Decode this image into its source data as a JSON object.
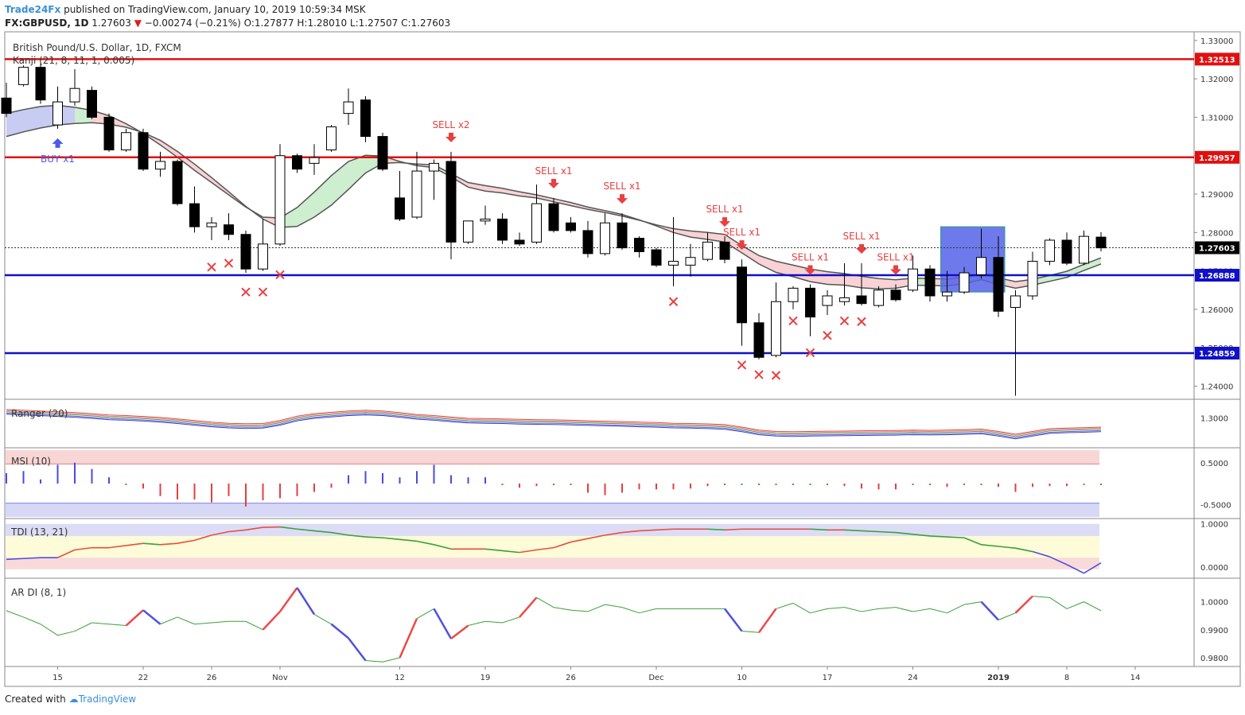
{
  "header": {
    "publisher": "Trade24Fx",
    "published_text": "published on TradingView.com, January 10, 2019 10:59:34 MSK",
    "symbol": "FX:GBPUSD, 1D",
    "last": "1.27603",
    "change": "−0.00274 (−0.21%)",
    "o_label": "O:",
    "o": "1.27877",
    "h_label": "H:",
    "h": "1.28010",
    "l_label": "L:",
    "l": "1.27507",
    "c_label": "C:",
    "c": "1.27603"
  },
  "footer": {
    "created_with": "Created with",
    "brand": "TradingView"
  },
  "colors": {
    "up_candle": "#ffffff",
    "down_candle": "#000000",
    "resistance": "#e01010",
    "support": "#1010c8",
    "sell": "#e84040",
    "buy": "#4a5ce8",
    "highlight": "#5561e8"
  },
  "chart_data": {
    "type": "candlestick",
    "title": "British Pound/U.S. Dollar, 1D, FXCM",
    "indicator_label": "Kanji (21, 8, 11, 1, 0.005)",
    "ylim": [
      1.237,
      1.331
    ],
    "y_ticks": [
      "1.33000",
      "1.32000",
      "1.31000",
      "1.30000",
      "1.29000",
      "1.28000",
      "1.27000",
      "1.26000",
      "1.25000",
      "1.24000"
    ],
    "x_ticks": [
      {
        "label": "15",
        "i": 3
      },
      {
        "label": "22",
        "i": 8
      },
      {
        "label": "26",
        "i": 12
      },
      {
        "label": "Nov",
        "i": 16
      },
      {
        "label": "12",
        "i": 23
      },
      {
        "label": "19",
        "i": 28
      },
      {
        "label": "26",
        "i": 33
      },
      {
        "label": "Dec",
        "i": 38
      },
      {
        "label": "10",
        "i": 43
      },
      {
        "label": "17",
        "i": 48
      },
      {
        "label": "24",
        "i": 53
      },
      {
        "label": "2019",
        "i": 58
      },
      {
        "label": "8",
        "i": 62
      },
      {
        "label": "14",
        "i": 66
      }
    ],
    "horizontal_lines": [
      {
        "value": 1.32513,
        "label": "1.32513",
        "kind": "resistance"
      },
      {
        "value": 1.29957,
        "label": "1.29957",
        "kind": "resistance"
      },
      {
        "value": 1.26888,
        "label": "1.26888",
        "kind": "support"
      },
      {
        "value": 1.24859,
        "label": "1.24859",
        "kind": "support"
      }
    ],
    "last_price": {
      "value": 1.27603,
      "label": "1.27603"
    },
    "candles": [
      [
        1.315,
        1.319,
        1.31,
        1.311
      ],
      [
        1.3185,
        1.3235,
        1.318,
        1.323
      ],
      [
        1.323,
        1.324,
        1.3135,
        1.3145
      ],
      [
        1.308,
        1.318,
        1.307,
        1.314
      ],
      [
        1.314,
        1.3225,
        1.313,
        1.3175
      ],
      [
        1.317,
        1.318,
        1.3095,
        1.31
      ],
      [
        1.31,
        1.311,
        1.301,
        1.3015
      ],
      [
        1.3015,
        1.307,
        1.301,
        1.306
      ],
      [
        1.306,
        1.307,
        1.296,
        1.2965
      ],
      [
        1.2965,
        1.301,
        1.2945,
        1.2985
      ],
      [
        1.2985,
        1.299,
        1.287,
        1.2875
      ],
      [
        1.2875,
        1.292,
        1.28,
        1.2815
      ],
      [
        1.2815,
        1.284,
        1.278,
        1.2825
      ],
      [
        1.282,
        1.285,
        1.278,
        1.2795
      ],
      [
        1.2795,
        1.2805,
        1.2695,
        1.2705
      ],
      [
        1.2705,
        1.2835,
        1.27,
        1.277
      ],
      [
        1.277,
        1.303,
        1.2765,
        1.3
      ],
      [
        1.3,
        1.3005,
        1.2955,
        1.2965
      ],
      [
        1.298,
        1.303,
        1.295,
        1.2995
      ],
      [
        1.3015,
        1.308,
        1.301,
        1.3075
      ],
      [
        1.311,
        1.3175,
        1.308,
        1.314
      ],
      [
        1.3145,
        1.3155,
        1.3035,
        1.305
      ],
      [
        1.305,
        1.306,
        1.296,
        1.2965
      ],
      [
        1.289,
        1.296,
        1.283,
        1.2835
      ],
      [
        1.284,
        1.301,
        1.2835,
        1.296
      ],
      [
        1.296,
        1.299,
        1.2885,
        1.298
      ],
      [
        1.2985,
        1.301,
        1.273,
        1.2775
      ],
      [
        1.2775,
        1.283,
        1.277,
        1.283
      ],
      [
        1.283,
        1.287,
        1.282,
        1.2835
      ],
      [
        1.2835,
        1.285,
        1.277,
        1.278
      ],
      [
        1.278,
        1.28,
        1.2765,
        1.277
      ],
      [
        1.2775,
        1.2925,
        1.277,
        1.2875
      ],
      [
        1.2875,
        1.289,
        1.28,
        1.2805
      ],
      [
        1.2825,
        1.284,
        1.28,
        1.2805
      ],
      [
        1.2805,
        1.283,
        1.2735,
        1.2745
      ],
      [
        1.2745,
        1.285,
        1.274,
        1.2825
      ],
      [
        1.2825,
        1.285,
        1.2755,
        1.276
      ],
      [
        1.2785,
        1.279,
        1.2735,
        1.275
      ],
      [
        1.2755,
        1.276,
        1.271,
        1.2715
      ],
      [
        1.2715,
        1.284,
        1.266,
        1.2725
      ],
      [
        1.2715,
        1.277,
        1.2685,
        1.2735
      ],
      [
        1.273,
        1.28,
        1.2725,
        1.2775
      ],
      [
        1.2775,
        1.279,
        1.272,
        1.273
      ],
      [
        1.271,
        1.273,
        1.2505,
        1.2565
      ],
      [
        1.2565,
        1.259,
        1.247,
        1.2475
      ],
      [
        1.248,
        1.267,
        1.2475,
        1.262
      ],
      [
        1.262,
        1.266,
        1.26,
        1.2655
      ],
      [
        1.2655,
        1.2665,
        1.253,
        1.258
      ],
      [
        1.261,
        1.265,
        1.2585,
        1.2635
      ],
      [
        1.262,
        1.272,
        1.261,
        1.263
      ],
      [
        1.2635,
        1.272,
        1.261,
        1.2615
      ],
      [
        1.261,
        1.266,
        1.2605,
        1.265
      ],
      [
        1.265,
        1.2665,
        1.262,
        1.2625
      ],
      [
        1.265,
        1.274,
        1.2645,
        1.2705
      ],
      [
        1.2705,
        1.2715,
        1.262,
        1.2635
      ],
      [
        1.2635,
        1.27,
        1.262,
        1.2645
      ],
      [
        1.2645,
        1.271,
        1.264,
        1.2695
      ],
      [
        1.269,
        1.281,
        1.268,
        1.2735
      ],
      [
        1.2735,
        1.279,
        1.258,
        1.2595
      ],
      [
        1.2605,
        1.265,
        1.2375,
        1.2635
      ],
      [
        1.2635,
        1.275,
        1.2625,
        1.2725
      ],
      [
        1.2725,
        1.2785,
        1.2715,
        1.278
      ],
      [
        1.278,
        1.28,
        1.2715,
        1.272
      ],
      [
        1.272,
        1.2805,
        1.2715,
        1.279
      ],
      [
        1.2788,
        1.2801,
        1.2751,
        1.276
      ]
    ],
    "band_upper": [
      1.311,
      1.312,
      1.3128,
      1.3131,
      1.3126,
      1.3118,
      1.3104,
      1.3083,
      1.3058,
      1.3028,
      1.2996,
      1.2962,
      1.293,
      1.2898,
      1.2866,
      1.284,
      1.2838,
      1.2865,
      1.2905,
      1.2948,
      1.2985,
      1.3001,
      1.2999,
      1.2985,
      1.2974,
      1.2969,
      1.2945,
      1.2918,
      1.2908,
      1.2903,
      1.2895,
      1.289,
      1.288,
      1.287,
      1.286,
      1.2852,
      1.2843,
      1.2832,
      1.282,
      1.281,
      1.2804,
      1.28,
      1.2795,
      1.2766,
      1.274,
      1.2725,
      1.2715,
      1.2705,
      1.2698,
      1.2693,
      1.2686,
      1.268,
      1.2677,
      1.2681,
      1.268,
      1.2679,
      1.2683,
      1.2691,
      1.2682,
      1.2672,
      1.2678,
      1.2688,
      1.2699,
      1.2717,
      1.2734
    ],
    "band_lower": [
      1.305,
      1.3062,
      1.3072,
      1.308,
      1.3084,
      1.3086,
      1.3082,
      1.3074,
      1.306,
      1.304,
      1.3011,
      1.2978,
      1.2943,
      1.2906,
      1.2868,
      1.2835,
      1.2813,
      1.2816,
      1.284,
      1.2871,
      1.2912,
      1.2955,
      1.298,
      1.2982,
      1.2978,
      1.2976,
      1.2953,
      1.293,
      1.2922,
      1.2915,
      1.2906,
      1.2898,
      1.2888,
      1.2878,
      1.2866,
      1.2857,
      1.2847,
      1.2833,
      1.2817,
      1.28,
      1.2788,
      1.2782,
      1.2775,
      1.2747,
      1.2718,
      1.2696,
      1.2685,
      1.2672,
      1.2665,
      1.2663,
      1.2656,
      1.2653,
      1.2655,
      1.2663,
      1.2662,
      1.2661,
      1.2667,
      1.2677,
      1.2665,
      1.2655,
      1.2663,
      1.2673,
      1.2683,
      1.2701,
      1.2718
    ],
    "annotations": [
      {
        "i": 3,
        "kind": "buy",
        "text": "BUY x1"
      },
      {
        "i": 26,
        "kind": "sell",
        "text": "SELL x2"
      },
      {
        "i": 32,
        "kind": "sell",
        "text": "SELL x1"
      },
      {
        "i": 36,
        "kind": "sell",
        "text": "SELL x1"
      },
      {
        "i": 42,
        "kind": "sell",
        "text": "SELL x1"
      },
      {
        "i": 43,
        "kind": "sell",
        "text": "SELL x1"
      },
      {
        "i": 47,
        "kind": "sell",
        "text": "SELL x1"
      },
      {
        "i": 50,
        "kind": "sell",
        "text": "SELL x1"
      },
      {
        "i": 52,
        "kind": "sell",
        "text": "SELL x1"
      }
    ],
    "cross_marks": [
      [
        12,
        1.271
      ],
      [
        13,
        1.272
      ],
      [
        14,
        1.2645
      ],
      [
        15,
        1.2645
      ],
      [
        16,
        1.269
      ],
      [
        39,
        1.262
      ],
      [
        43,
        1.2455
      ],
      [
        44,
        1.243
      ],
      [
        45,
        1.2428
      ],
      [
        46,
        1.257
      ],
      [
        47,
        1.2487
      ],
      [
        48,
        1.2532
      ],
      [
        49,
        1.257
      ],
      [
        50,
        1.2568
      ]
    ],
    "highlight_box": {
      "i0": 55,
      "i1": 58,
      "top": 1.2815,
      "bottom": 1.2645
    },
    "panels": [
      {
        "name": "Ranger",
        "label": "Ranger (20)",
        "ticks": [
          "1.3000"
        ],
        "values": [
          1.304,
          1.3035,
          1.303,
          1.3024,
          1.3018,
          1.301,
          1.3,
          1.2996,
          1.299,
          1.2982,
          1.2972,
          1.296,
          1.2948,
          1.294,
          1.2936,
          1.2938,
          1.296,
          1.2992,
          1.301,
          1.302,
          1.303,
          1.3035,
          1.303,
          1.3018,
          1.3004,
          1.2996,
          1.2985,
          1.2976,
          1.2974,
          1.2972,
          1.2968,
          1.2966,
          1.2965,
          1.2962,
          1.2958,
          1.2955,
          1.2952,
          1.2948,
          1.2945,
          1.294,
          1.2938,
          1.2935,
          1.293,
          1.2912,
          1.289,
          1.288,
          1.2878,
          1.288,
          1.2882,
          1.2883,
          1.2885,
          1.2886,
          1.2887,
          1.289,
          1.2888,
          1.289,
          1.2893,
          1.2897,
          1.288,
          1.286,
          1.288,
          1.29,
          1.2905,
          1.2908,
          1.2912
        ]
      },
      {
        "name": "MSI",
        "label": "MSI (10)",
        "ticks": [
          "0.5000",
          "-0.5000"
        ],
        "values": [
          0.25,
          0.3,
          0.1,
          0.45,
          0.5,
          0.35,
          0.15,
          -0.02,
          -0.12,
          -0.3,
          -0.38,
          -0.38,
          -0.45,
          -0.3,
          -0.55,
          -0.4,
          -0.35,
          -0.3,
          -0.2,
          -0.1,
          0.2,
          0.3,
          0.25,
          0.15,
          0.3,
          0.45,
          0.2,
          0.15,
          0.15,
          -0.02,
          -0.1,
          -0.06,
          -0.03,
          -0.02,
          -0.22,
          -0.28,
          -0.22,
          -0.14,
          -0.14,
          -0.14,
          -0.12,
          -0.06,
          -0.03,
          -0.03,
          -0.02,
          -0.02,
          -0.02,
          -0.02,
          -0.02,
          -0.06,
          -0.12,
          -0.14,
          -0.14,
          -0.02,
          -0.02,
          -0.08,
          -0.02,
          -0.02,
          -0.08,
          -0.2,
          -0.08,
          -0.06,
          -0.06,
          -0.03,
          -0.02
        ]
      },
      {
        "name": "TDI",
        "label": "TDI (13, 21)",
        "ticks": [
          "1.0000",
          "0.0000"
        ],
        "values": [
          0.18,
          0.2,
          0.22,
          0.22,
          0.4,
          0.45,
          0.45,
          0.5,
          0.55,
          0.52,
          0.55,
          0.62,
          0.74,
          0.82,
          0.86,
          0.92,
          0.93,
          0.88,
          0.84,
          0.8,
          0.74,
          0.7,
          0.68,
          0.64,
          0.6,
          0.52,
          0.42,
          0.42,
          0.42,
          0.38,
          0.34,
          0.4,
          0.45,
          0.58,
          0.66,
          0.74,
          0.8,
          0.84,
          0.86,
          0.88,
          0.88,
          0.88,
          0.86,
          0.88,
          0.88,
          0.88,
          0.88,
          0.88,
          0.86,
          0.86,
          0.84,
          0.82,
          0.8,
          0.76,
          0.72,
          0.7,
          0.68,
          0.52,
          0.48,
          0.44,
          0.36,
          0.24,
          0.06,
          -0.14,
          0.1
        ],
        "shading": [
          [
            0.72,
            1.0
          ],
          [
            0.22,
            0.72
          ],
          [
            -0.05,
            0.22
          ]
        ]
      },
      {
        "name": "ARDI",
        "label": "AR DI (8, 1)",
        "ticks": [
          "1.0000",
          "0.9900",
          "0.9800"
        ],
        "values": [
          0.9968,
          0.9945,
          0.992,
          0.988,
          0.9895,
          0.9925,
          0.992,
          0.9915,
          0.997,
          0.992,
          0.9945,
          0.992,
          0.9925,
          0.993,
          0.993,
          0.99,
          0.9965,
          1.005,
          0.9955,
          0.992,
          0.987,
          0.979,
          0.9785,
          0.98,
          0.994,
          0.9975,
          0.9868,
          0.9915,
          0.993,
          0.9925,
          0.9945,
          1.0015,
          0.998,
          0.997,
          0.9965,
          0.999,
          0.998,
          0.996,
          0.9975,
          0.9975,
          0.9975,
          0.9975,
          0.9975,
          0.9895,
          0.989,
          0.9975,
          0.9995,
          0.996,
          0.9975,
          0.998,
          0.9965,
          0.9975,
          0.998,
          0.9965,
          0.9975,
          0.996,
          0.999,
          1.0,
          0.9935,
          0.996,
          1.002,
          1.0015,
          0.9975,
          1.0,
          0.9968
        ],
        "ylim": [
          0.978,
          1.007
        ]
      }
    ]
  }
}
